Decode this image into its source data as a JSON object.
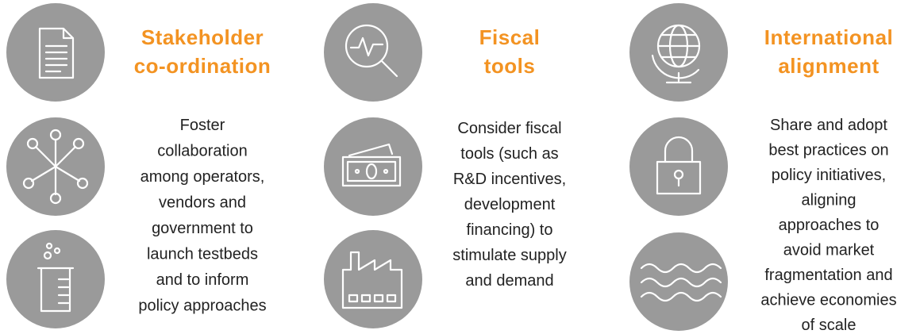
{
  "columns": [
    {
      "title": [
        "Stakeholder",
        "co-ordination"
      ],
      "body": [
        "Foster",
        "collaboration",
        "among operators,",
        "vendors and",
        "government to",
        "launch testbeds",
        "and to inform",
        "policy approaches"
      ]
    },
    {
      "title": [
        "Fiscal",
        "tools"
      ],
      "body": [
        "Consider fiscal",
        "tools (such as",
        "R&D incentives,",
        "development",
        "financing) to",
        "stimulate supply",
        "and demand"
      ]
    },
    {
      "title": [
        "International",
        "alignment"
      ],
      "body": [
        "Share and adopt",
        "best practices on",
        "policy initiatives,",
        "aligning",
        "approaches to",
        "avoid market",
        "fragmentation and",
        "achieve economies",
        "of scale"
      ]
    }
  ]
}
